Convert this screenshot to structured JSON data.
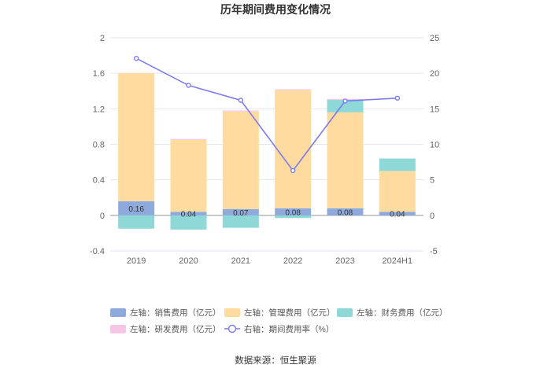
{
  "chart_data": {
    "type": "bar",
    "title": "历年期间费用变化情况",
    "categories": [
      "2019",
      "2020",
      "2021",
      "2022",
      "2023",
      "2024H1"
    ],
    "series": [
      {
        "name": "左轴：销售费用（亿元）",
        "axis": "left",
        "kind": "bar",
        "color": "#8eaadc",
        "values": [
          0.16,
          0.04,
          0.07,
          0.08,
          0.08,
          0.04
        ],
        "labels": [
          "0.16",
          "0.04",
          "0.07",
          "0.08",
          "0.08",
          "0.04"
        ]
      },
      {
        "name": "左轴：管理费用（亿元）",
        "axis": "left",
        "kind": "bar",
        "color": "#ffdba0",
        "values": [
          1.44,
          0.81,
          1.1,
          1.33,
          1.08,
          0.46
        ]
      },
      {
        "name": "左轴：财务费用（亿元）",
        "axis": "left",
        "kind": "bar",
        "color": "#8fd8d8",
        "values": [
          -0.15,
          -0.16,
          -0.14,
          -0.03,
          0.14,
          0.14
        ]
      },
      {
        "name": "左轴：研发费用（亿元）",
        "axis": "left",
        "kind": "bar",
        "color": "#f5c6e6",
        "values": [
          0.0,
          0.01,
          0.01,
          0.01,
          0.01,
          0.0
        ]
      },
      {
        "name": "右轴：期间费用率（%）",
        "axis": "right",
        "kind": "line",
        "color": "#7b7bf0",
        "values": [
          22.1,
          18.3,
          16.2,
          6.3,
          16.1,
          16.5
        ]
      }
    ],
    "y_left": {
      "min": -0.4,
      "max": 2,
      "ticks": [
        "-0.4",
        "0",
        "0.4",
        "0.8",
        "1.2",
        "1.6",
        "2"
      ]
    },
    "y_right": {
      "min": -5,
      "max": 25,
      "ticks": [
        "-5",
        "0",
        "5",
        "10",
        "15",
        "20",
        "25"
      ]
    },
    "grid": true,
    "legend_position": "bottom",
    "source": "数据来源：恒生聚源"
  }
}
